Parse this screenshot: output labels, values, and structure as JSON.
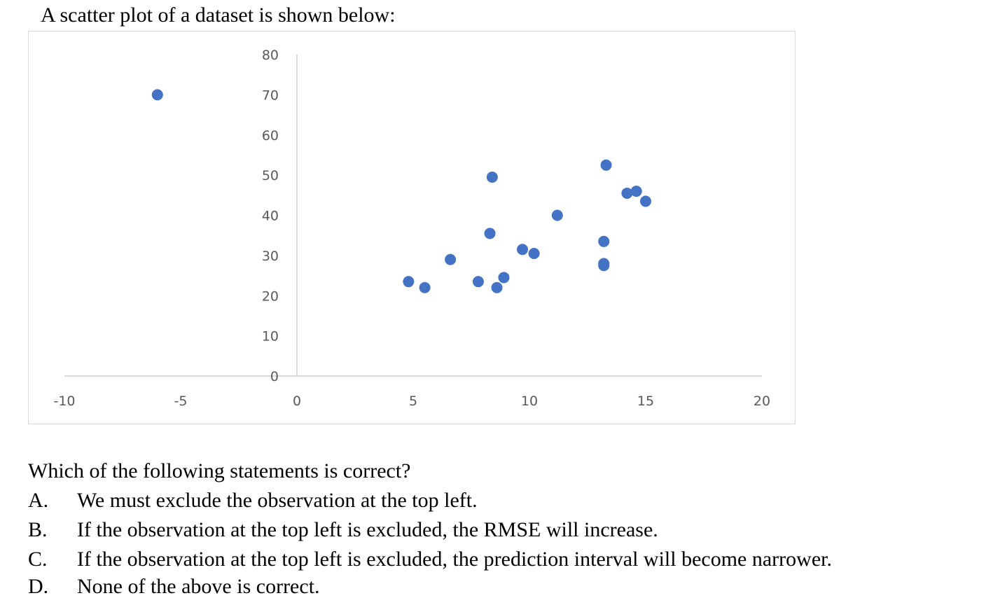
{
  "intro": "A scatter plot of a dataset is shown below:",
  "question": "Which of the following statements is correct?",
  "options": [
    {
      "letter": "A.",
      "text": "We must exclude the observation at the top left."
    },
    {
      "letter": "B.",
      "text": "If the observation at the top left is excluded, the RMSE will increase."
    },
    {
      "letter": "C.",
      "text": "If the observation at the top left is excluded, the prediction interval will become narrower."
    },
    {
      "letter": "D.",
      "text": "None of the above is correct."
    }
  ],
  "colors": {
    "marker": "#4472c4",
    "axis": "#d9d9d9",
    "tick_text": "#595959"
  },
  "chart_data": {
    "type": "scatter",
    "title": "",
    "xlabel": "",
    "ylabel": "",
    "xlim": [
      -10,
      20
    ],
    "ylim": [
      0,
      80
    ],
    "x_ticks": [
      -10,
      -5,
      0,
      5,
      10,
      15,
      20
    ],
    "y_ticks": [
      0,
      10,
      20,
      30,
      40,
      50,
      60,
      70,
      80
    ],
    "x_tick_labels": [
      "-10",
      "-5",
      "0",
      "5",
      "10",
      "15",
      "20"
    ],
    "y_tick_labels": [
      "0",
      "10",
      "20",
      "30",
      "40",
      "50",
      "60",
      "70",
      "80"
    ],
    "grid": false,
    "legend": "none",
    "points": [
      {
        "x": -6.0,
        "y": 70.0
      },
      {
        "x": 4.8,
        "y": 23.5
      },
      {
        "x": 5.5,
        "y": 22.0
      },
      {
        "x": 6.6,
        "y": 29.0
      },
      {
        "x": 7.8,
        "y": 23.5
      },
      {
        "x": 8.3,
        "y": 35.5
      },
      {
        "x": 8.4,
        "y": 49.5
      },
      {
        "x": 8.6,
        "y": 22.0
      },
      {
        "x": 8.9,
        "y": 24.5
      },
      {
        "x": 9.7,
        "y": 31.5
      },
      {
        "x": 10.2,
        "y": 30.5
      },
      {
        "x": 11.2,
        "y": 40.0
      },
      {
        "x": 13.2,
        "y": 33.5
      },
      {
        "x": 13.2,
        "y": 28.0
      },
      {
        "x": 13.2,
        "y": 27.5
      },
      {
        "x": 13.3,
        "y": 52.5
      },
      {
        "x": 14.2,
        "y": 45.5
      },
      {
        "x": 14.6,
        "y": 46.0
      },
      {
        "x": 15.0,
        "y": 43.5
      }
    ]
  }
}
